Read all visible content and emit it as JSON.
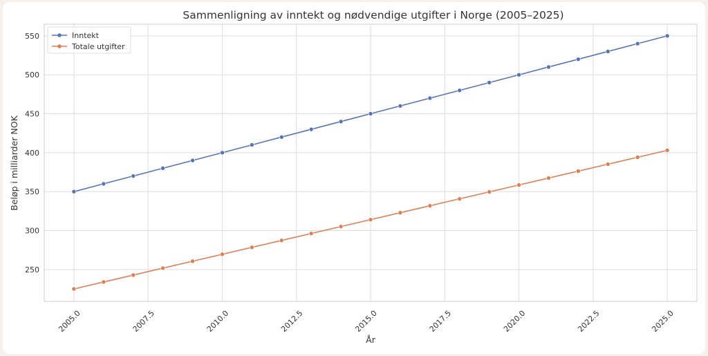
{
  "chart_data": {
    "type": "line",
    "title": "Sammenligning av inntekt og nødvendige utgifter i Norge (2005–2025)",
    "xlabel": "År",
    "ylabel": "Beløp i milliarder NOK",
    "xlim": [
      2004,
      2026
    ],
    "ylim": [
      209,
      565
    ],
    "xticks": [
      2005.0,
      2007.5,
      2010.0,
      2012.5,
      2015.0,
      2017.5,
      2020.0,
      2022.5,
      2025.0
    ],
    "xtick_labels": [
      "2005.0",
      "2007.5",
      "2010.0",
      "2012.5",
      "2015.0",
      "2017.5",
      "2020.0",
      "2022.5",
      "2025.0"
    ],
    "yticks": [
      250,
      300,
      350,
      400,
      450,
      500,
      550
    ],
    "ytick_labels": [
      "250",
      "300",
      "350",
      "400",
      "450",
      "500",
      "550"
    ],
    "grid": true,
    "legend_position": "top-left",
    "x": [
      2005,
      2006,
      2007,
      2008,
      2009,
      2010,
      2011,
      2012,
      2013,
      2014,
      2015,
      2016,
      2017,
      2018,
      2019,
      2020,
      2021,
      2022,
      2023,
      2024,
      2025
    ],
    "series": [
      {
        "name": "Inntekt",
        "color": "#5874b4",
        "values": [
          350,
          360,
          370,
          380,
          390,
          400,
          410,
          420,
          430,
          440,
          450,
          460,
          470,
          480,
          490,
          500,
          510,
          520,
          530,
          540,
          550
        ]
      },
      {
        "name": "Totale utgifter",
        "color": "#dd7f55",
        "values": [
          225,
          233.9,
          242.8,
          251.7,
          260.6,
          269.5,
          278.4,
          287.3,
          296.2,
          305.1,
          314,
          322.9,
          331.8,
          340.7,
          349.6,
          358.5,
          367.4,
          376.3,
          385.2,
          394.1,
          403
        ]
      }
    ]
  }
}
